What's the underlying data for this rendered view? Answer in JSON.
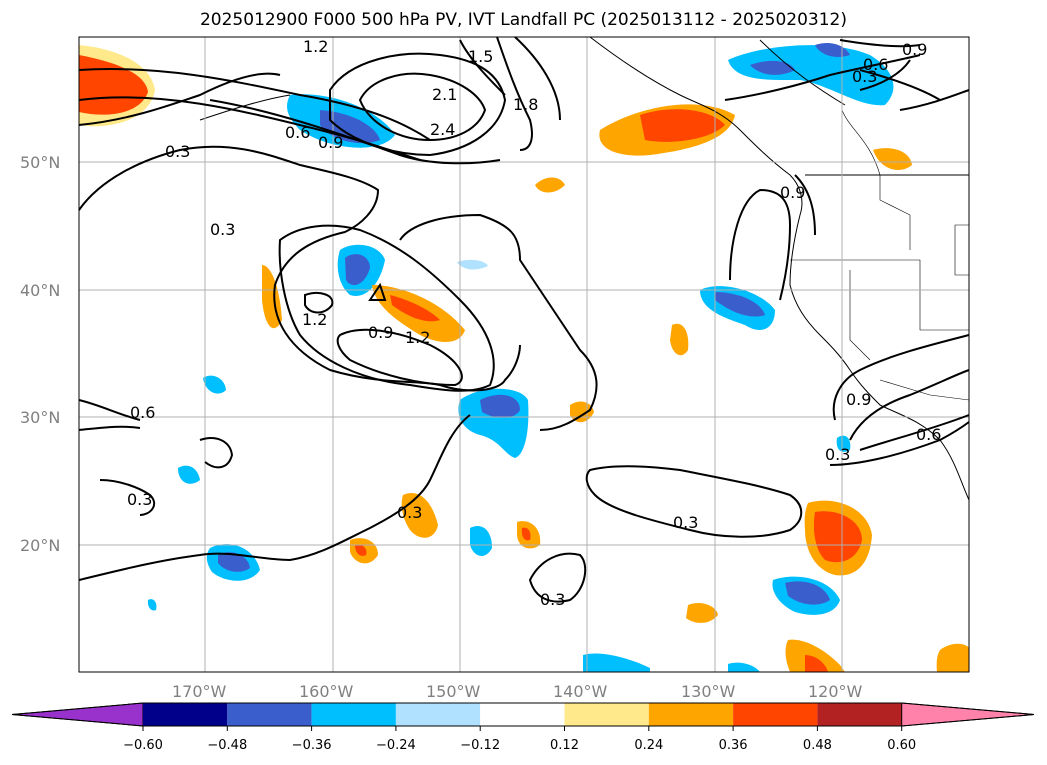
{
  "title": "2025012900 F000 500 hPa PV, IVT Landfall PC (2025013112 - 2025020312)",
  "lat_labels": [
    "50°N",
    "40°N",
    "30°N",
    "20°N"
  ],
  "lon_labels": [
    "170°W",
    "160°W",
    "150°W",
    "140°W",
    "130°W",
    "120°W"
  ],
  "colorbar": {
    "ticks": [
      "-0.60",
      "-0.48",
      "-0.36",
      "-0.24",
      "-0.12",
      "0.12",
      "0.24",
      "0.36",
      "0.48",
      "0.60"
    ],
    "colors": [
      "#9932cc",
      "#00008b",
      "#3a5fcd",
      "#00bfff",
      "#b0e2ff",
      "#ffffff",
      "#ffe98a",
      "#ffa500",
      "#ff4500",
      "#b22222",
      "#ff82ab"
    ]
  },
  "contour_labels": [
    "0.3",
    "0.6",
    "0.9",
    "1.2",
    "1.5",
    "1.8",
    "2.1",
    "2.4",
    "0.3",
    "0.3",
    "0.3",
    "0.3",
    "0.3",
    "0.9",
    "1.2",
    "1.2",
    "0.9",
    "0.6",
    "0.6",
    "0.9",
    "0.3",
    "0.3",
    "0.9",
    "0.6",
    "0.3",
    "0.3"
  ],
  "colors": {
    "land": "#ffffff",
    "grid": "#b0b0b0",
    "contour": "#000000"
  }
}
